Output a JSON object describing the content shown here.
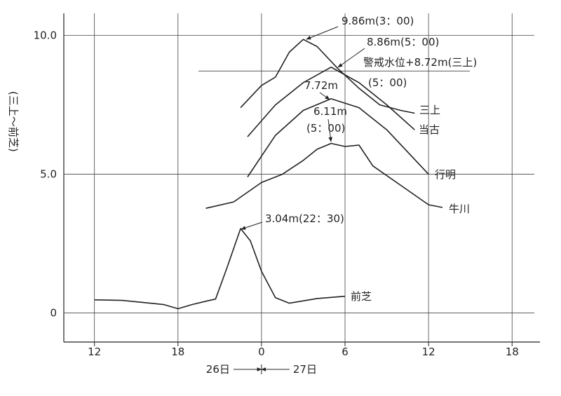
{
  "chart_data": {
    "type": "line",
    "y_label": "(三上～前芝)",
    "xlim": [
      9.8,
      43.6
    ],
    "xticks": [
      12,
      18,
      {
        "value": 24,
        "label": "0"
      },
      {
        "value": 30,
        "label": "6"
      },
      {
        "value": 36,
        "label": "12"
      },
      {
        "value": 42,
        "label": "18"
      }
    ],
    "ylim": [
      -1.05,
      10.8
    ],
    "yticks": [
      0,
      {
        "value": 5,
        "label": "5.0"
      },
      {
        "value": 10,
        "label": "10.0"
      }
    ],
    "grid": true,
    "date_labels": [
      "26日",
      "27日"
    ],
    "warning_level": {
      "value": 8.72,
      "label": "警戒水位+8.72m(三上)"
    },
    "annotations": [
      "9.86m(3：00)",
      "8.86m(5：00)",
      "(5：00)",
      "7.72m",
      "6.11m",
      "(5：00)",
      "3.04m(22：30)"
    ],
    "series": [
      {
        "name": "三上",
        "color": "#222222",
        "x": [
          22.5,
          24,
          25,
          26,
          27,
          28,
          29.5,
          31,
          32.5,
          34,
          35
        ],
        "values": [
          7.4,
          8.2,
          8.5,
          9.4,
          9.86,
          9.6,
          8.8,
          8.1,
          7.5,
          7.3,
          7.2
        ]
      },
      {
        "name": "当古",
        "color": "#222222",
        "x": [
          23,
          25,
          27,
          29,
          31,
          33,
          35
        ],
        "values": [
          6.35,
          7.5,
          8.3,
          8.86,
          8.3,
          7.5,
          6.6
        ]
      },
      {
        "name": "行明",
        "color": "#222222",
        "x": [
          23,
          25,
          27,
          29,
          31,
          33,
          36
        ],
        "values": [
          4.9,
          6.4,
          7.3,
          7.72,
          7.4,
          6.6,
          5.0
        ]
      },
      {
        "name": "牛川",
        "color": "#222222",
        "x": [
          20,
          22,
          24,
          25.5,
          27,
          28,
          29,
          30,
          31,
          32,
          34,
          36,
          37
        ],
        "values": [
          3.77,
          4.0,
          4.7,
          5.0,
          5.5,
          5.9,
          6.11,
          6.0,
          6.05,
          5.3,
          4.6,
          3.9,
          3.8
        ]
      },
      {
        "name": "前芝",
        "color": "#222222",
        "x": [
          12,
          14,
          17,
          18,
          19,
          20,
          20.7,
          21.5,
          22.5,
          23.2,
          24,
          25,
          26,
          28,
          30
        ],
        "values": [
          0.47,
          0.45,
          0.3,
          0.15,
          0.3,
          0.42,
          0.5,
          1.6,
          3.04,
          2.6,
          1.5,
          0.55,
          0.35,
          0.52,
          0.6
        ]
      }
    ]
  }
}
